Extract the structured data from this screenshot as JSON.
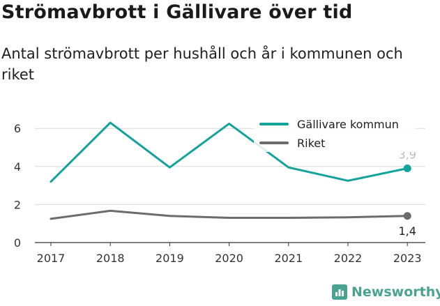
{
  "title": "Strömavbrott i Gällivare över tid",
  "subtitle": "Antal strömavbrott per hushåll och år i kommunen och riket",
  "brand": {
    "name": "Newsworthy",
    "icon": "bar-chart-logo-icon",
    "color": "#4aa391"
  },
  "chart_data": {
    "type": "line",
    "x": [
      "2017",
      "2018",
      "2019",
      "2020",
      "2021",
      "2022",
      "2023"
    ],
    "yticks": [
      "0",
      "2",
      "4",
      "6"
    ],
    "ylim": [
      0,
      7
    ],
    "grid": true,
    "legend_position": "top-right",
    "series": [
      {
        "name": "Gällivare kommun",
        "color": "#13a39a",
        "values": [
          3.2,
          6.3,
          3.95,
          6.25,
          3.95,
          3.25,
          3.9
        ],
        "end_label": "3,9"
      },
      {
        "name": "Riket",
        "color": "#6b6b70",
        "values": [
          1.25,
          1.67,
          1.4,
          1.3,
          1.3,
          1.33,
          1.4
        ],
        "end_label": "1,4"
      }
    ]
  }
}
